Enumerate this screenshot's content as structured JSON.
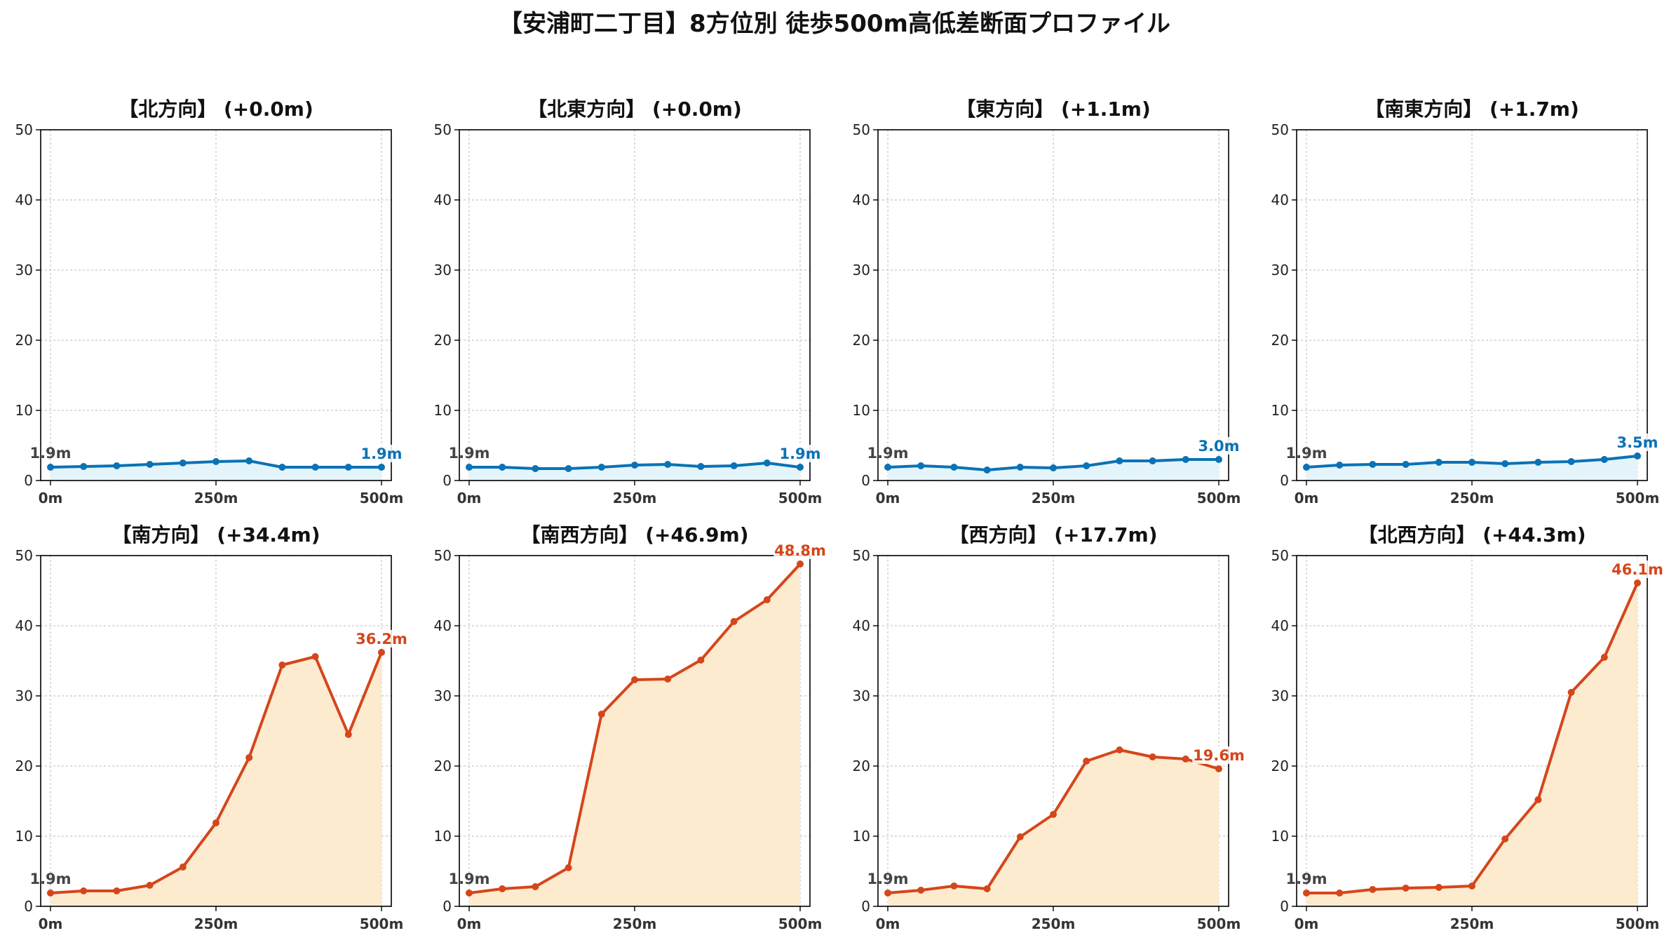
{
  "title": "【安浦町二丁目】8方位別 徒歩500m高低差断面プロファイル",
  "colors": {
    "low_line": "#0a72b5",
    "low_fill": "#e4f4fb",
    "high_line": "#d5461a",
    "high_fill": "#fdebd0",
    "start_label": "#444444"
  },
  "chart_data": [
    {
      "type": "area",
      "title": "【北方向】 (+0.0m)",
      "tone": "low",
      "x": [
        0,
        50,
        100,
        150,
        200,
        250,
        300,
        350,
        400,
        450,
        500
      ],
      "y": [
        1.9,
        2.0,
        2.1,
        2.3,
        2.5,
        2.7,
        2.8,
        1.9,
        1.9,
        1.9,
        1.9
      ],
      "ylim": [
        0,
        50
      ],
      "yticks": [
        "0",
        "10",
        "20",
        "30",
        "40",
        "50"
      ],
      "xticks": [
        "0m",
        "250m",
        "500m"
      ],
      "start_label": "1.9m",
      "end_label": "1.9m",
      "grid": true
    },
    {
      "type": "area",
      "title": "【北東方向】 (+0.0m)",
      "tone": "low",
      "x": [
        0,
        50,
        100,
        150,
        200,
        250,
        300,
        350,
        400,
        450,
        500
      ],
      "y": [
        1.9,
        1.9,
        1.7,
        1.7,
        1.9,
        2.2,
        2.3,
        2.0,
        2.1,
        2.5,
        1.9
      ],
      "ylim": [
        0,
        50
      ],
      "yticks": [
        "0",
        "10",
        "20",
        "30",
        "40",
        "50"
      ],
      "xticks": [
        "0m",
        "250m",
        "500m"
      ],
      "start_label": "1.9m",
      "end_label": "1.9m",
      "grid": true
    },
    {
      "type": "area",
      "title": "【東方向】 (+1.1m)",
      "tone": "low",
      "x": [
        0,
        50,
        100,
        150,
        200,
        250,
        300,
        350,
        400,
        450,
        500
      ],
      "y": [
        1.9,
        2.1,
        1.9,
        1.5,
        1.9,
        1.8,
        2.1,
        2.8,
        2.8,
        3.0,
        3.0
      ],
      "ylim": [
        0,
        50
      ],
      "yticks": [
        "0",
        "10",
        "20",
        "30",
        "40",
        "50"
      ],
      "xticks": [
        "0m",
        "250m",
        "500m"
      ],
      "start_label": "1.9m",
      "end_label": "3.0m",
      "grid": true
    },
    {
      "type": "area",
      "title": "【南東方向】 (+1.7m)",
      "tone": "low",
      "x": [
        0,
        50,
        100,
        150,
        200,
        250,
        300,
        350,
        400,
        450,
        500
      ],
      "y": [
        1.9,
        2.2,
        2.3,
        2.3,
        2.6,
        2.6,
        2.4,
        2.6,
        2.7,
        3.0,
        3.5
      ],
      "ylim": [
        0,
        50
      ],
      "yticks": [
        "0",
        "10",
        "20",
        "30",
        "40",
        "50"
      ],
      "xticks": [
        "0m",
        "250m",
        "500m"
      ],
      "start_label": "1.9m",
      "end_label": "3.5m",
      "grid": true
    },
    {
      "type": "area",
      "title": "【南方向】 (+34.4m)",
      "tone": "high",
      "x": [
        0,
        50,
        100,
        150,
        200,
        250,
        300,
        350,
        400,
        450,
        500
      ],
      "y": [
        1.9,
        2.2,
        2.2,
        3.0,
        5.6,
        11.9,
        21.2,
        34.4,
        35.6,
        24.5,
        36.2
      ],
      "ylim": [
        0,
        50
      ],
      "yticks": [
        "0",
        "10",
        "20",
        "30",
        "40",
        "50"
      ],
      "xticks": [
        "0m",
        "250m",
        "500m"
      ],
      "start_label": "1.9m",
      "end_label": "36.2m",
      "grid": true
    },
    {
      "type": "area",
      "title": "【南西方向】 (+46.9m)",
      "tone": "high",
      "x": [
        0,
        50,
        100,
        150,
        200,
        250,
        300,
        350,
        400,
        450,
        500
      ],
      "y": [
        1.9,
        2.5,
        2.8,
        5.5,
        27.4,
        32.3,
        32.4,
        35.1,
        40.6,
        43.7,
        48.8
      ],
      "ylim": [
        0,
        50
      ],
      "yticks": [
        "0",
        "10",
        "20",
        "30",
        "40",
        "50"
      ],
      "xticks": [
        "0m",
        "250m",
        "500m"
      ],
      "start_label": "1.9m",
      "end_label": "48.8m",
      "grid": true
    },
    {
      "type": "area",
      "title": "【西方向】 (+17.7m)",
      "tone": "high",
      "x": [
        0,
        50,
        100,
        150,
        200,
        250,
        300,
        350,
        400,
        450,
        500
      ],
      "y": [
        1.9,
        2.3,
        2.9,
        2.5,
        9.9,
        13.1,
        20.7,
        22.3,
        21.3,
        21.0,
        19.6
      ],
      "ylim": [
        0,
        50
      ],
      "yticks": [
        "0",
        "10",
        "20",
        "30",
        "40",
        "50"
      ],
      "xticks": [
        "0m",
        "250m",
        "500m"
      ],
      "start_label": "1.9m",
      "end_label": "19.6m",
      "grid": true
    },
    {
      "type": "area",
      "title": "【北西方向】 (+44.3m)",
      "tone": "high",
      "x": [
        0,
        50,
        100,
        150,
        200,
        250,
        300,
        350,
        400,
        450,
        500
      ],
      "y": [
        1.9,
        1.9,
        2.4,
        2.6,
        2.7,
        2.9,
        9.6,
        15.2,
        30.5,
        35.5,
        46.1
      ],
      "ylim": [
        0,
        50
      ],
      "yticks": [
        "0",
        "10",
        "20",
        "30",
        "40",
        "50"
      ],
      "xticks": [
        "0m",
        "250m",
        "500m"
      ],
      "start_label": "1.9m",
      "end_label": "46.1m",
      "grid": true
    }
  ]
}
